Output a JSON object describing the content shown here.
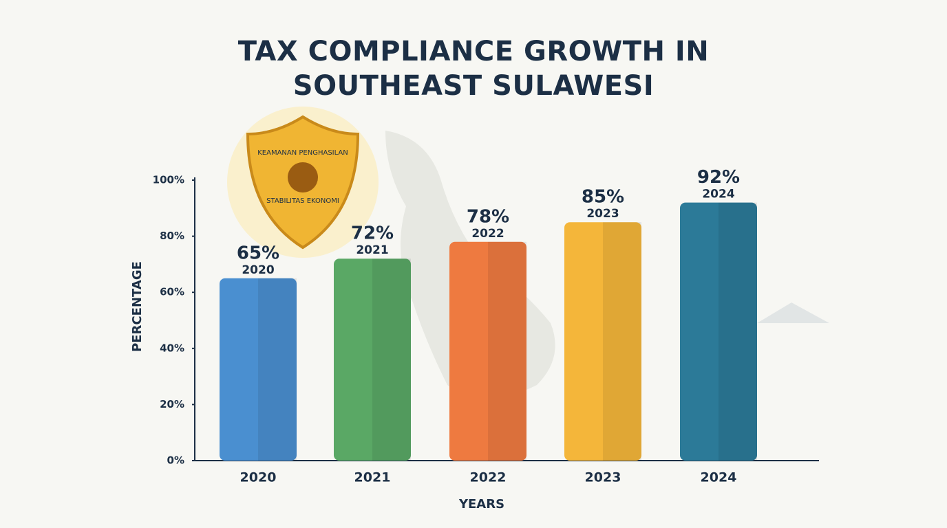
{
  "chart_data": {
    "type": "bar",
    "title": "TAX COMPLIANCE GROWTH IN SOUTHEAST SULAWESI",
    "x_label": "YEARS",
    "y_label": "PERCENTAGE",
    "categories": [
      "2020",
      "2021",
      "2022",
      "2023",
      "2024"
    ],
    "values": [
      65,
      72,
      78,
      85,
      92
    ],
    "value_labels": [
      "65%",
      "72%",
      "78%",
      "85%",
      "92%"
    ],
    "colors": [
      "#4a8fd0",
      "#5aa865",
      "#ee7a40",
      "#f4b63a",
      "#2c7a98"
    ],
    "ylim": [
      0,
      100
    ],
    "yticks": [
      {
        "value": 0,
        "label": "0%"
      },
      {
        "value": 20,
        "label": "20%"
      },
      {
        "value": 40,
        "label": "40%"
      },
      {
        "value": 60,
        "label": "60%"
      },
      {
        "value": 80,
        "label": "80%"
      },
      {
        "value": 100,
        "label": "100%"
      }
    ],
    "annotations": [
      "KEAMANAN PENGHASILAN",
      "STABILITAS EKONOMI"
    ]
  }
}
